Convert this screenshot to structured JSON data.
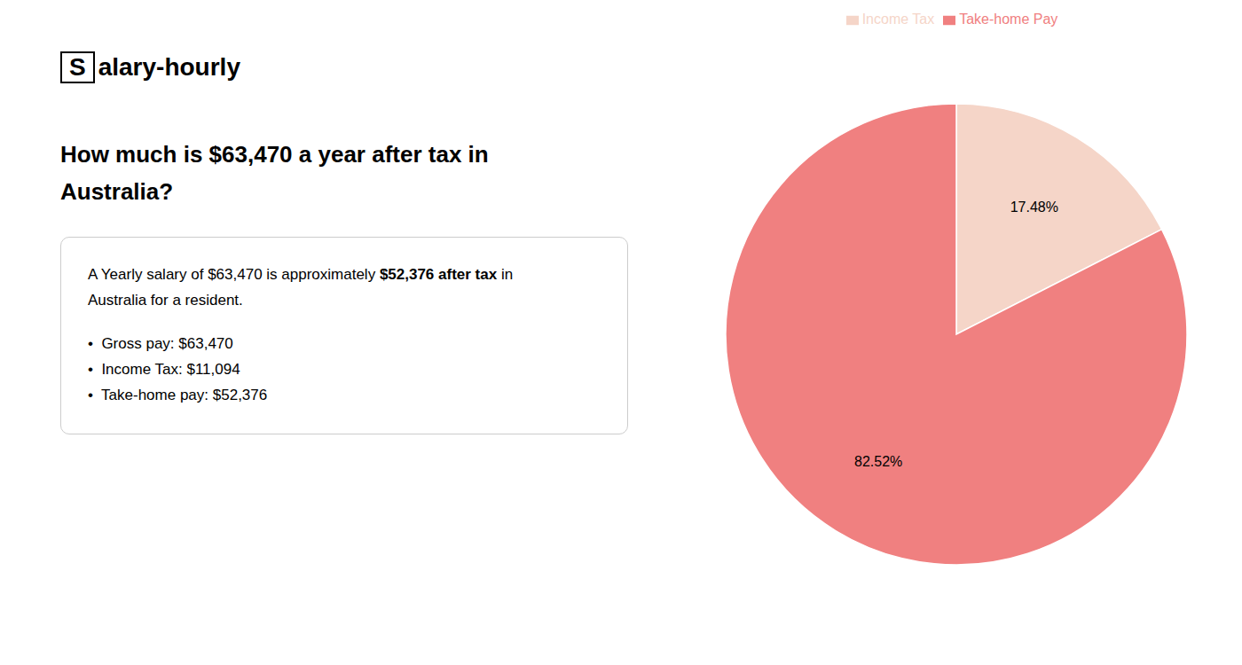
{
  "chart_data": {
    "type": "pie",
    "title": "How much is $63,470 a year after tax in\nAustralia?",
    "annotations": [
      "S",
      "alary-hourly",
      "A Yearly salary of $63,470 is approximately ",
      "$52,376 after tax",
      " in",
      "Australia for a resident.",
      "•  Gross pay: $63,470",
      "•  Income Tax: $11,094",
      "•  Take-home pay: $52,376"
    ],
    "categories": [
      "Income Tax",
      "Take-home Pay"
    ],
    "values": [
      17.48,
      82.52
    ],
    "colors": [
      "#f5d5c8",
      "#f08080"
    ],
    "data_labels": true,
    "value_labels": [
      "17.48%",
      "82.52%"
    ],
    "legend": "top"
  }
}
